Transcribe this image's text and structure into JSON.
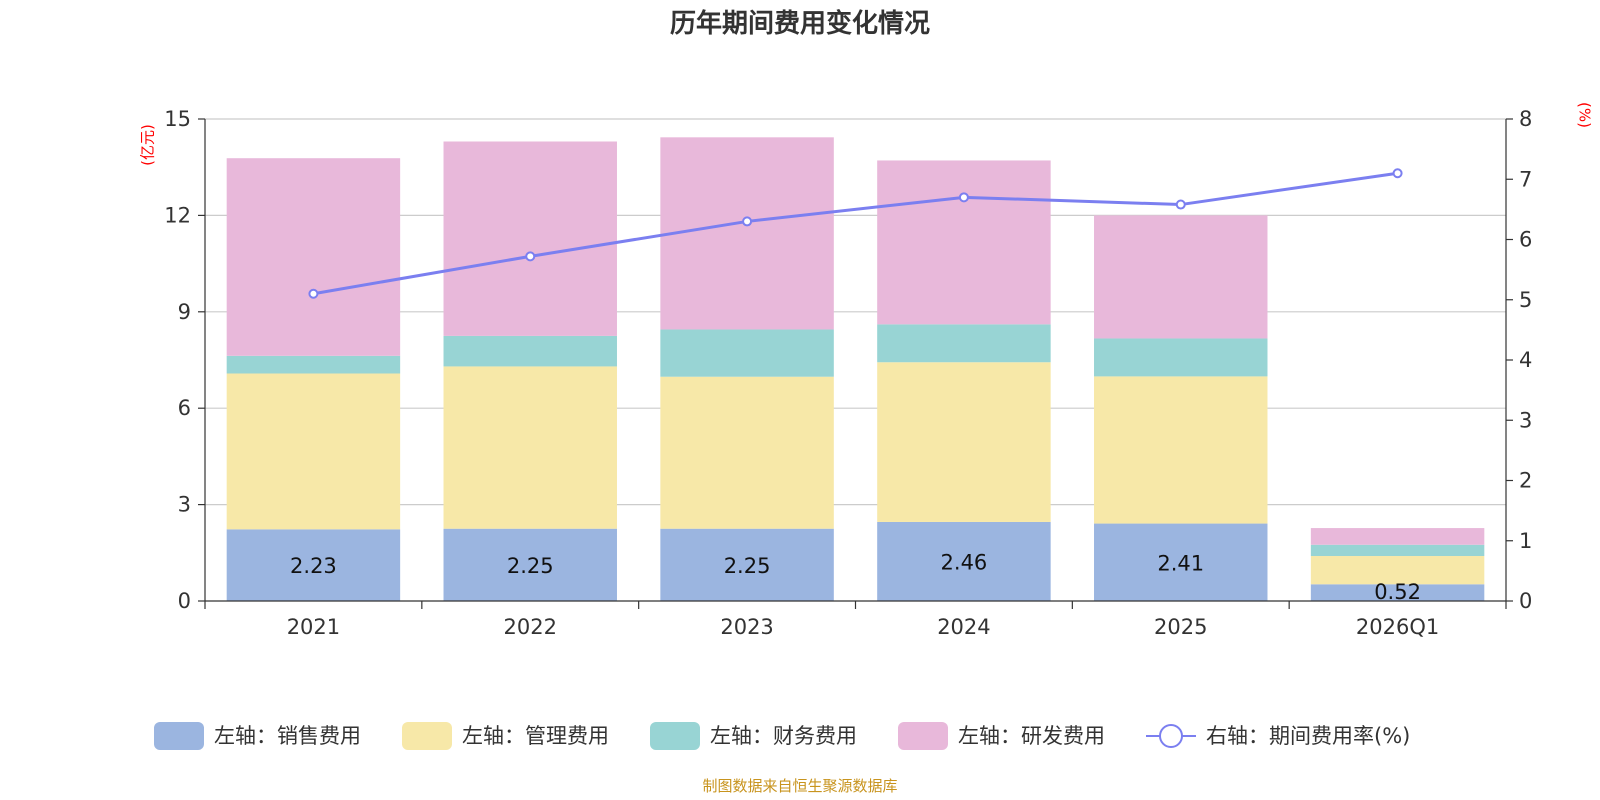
{
  "chart_data": {
    "type": "bar",
    "stacked": true,
    "title": "历年期间费用变化情况",
    "categories": [
      "2021",
      "2022",
      "2023",
      "2024",
      "2025",
      "2026Q1"
    ],
    "y_left": {
      "unit": "(亿元)",
      "min": 0,
      "max": 15,
      "ticks": [
        0,
        3,
        6,
        9,
        12,
        15
      ]
    },
    "y_right": {
      "unit": "(%)",
      "min": 0,
      "max": 8,
      "ticks": [
        0,
        1,
        2,
        3,
        4,
        5,
        6,
        7,
        8
      ]
    },
    "series": [
      {
        "name": "左轴：销售费用",
        "axis": "left",
        "color": "#9bb5e0",
        "values": [
          2.23,
          2.25,
          2.25,
          2.46,
          2.41,
          0.52
        ],
        "labels": [
          "2.23",
          "2.25",
          "2.25",
          "2.46",
          "2.41",
          "0.52"
        ]
      },
      {
        "name": "左轴：管理费用",
        "axis": "left",
        "color": "#f7e8a8",
        "values": [
          4.85,
          5.05,
          4.73,
          4.97,
          4.58,
          0.88
        ]
      },
      {
        "name": "左轴：财务费用",
        "axis": "left",
        "color": "#98d4d4",
        "values": [
          0.55,
          0.95,
          1.47,
          1.18,
          1.18,
          0.35
        ]
      },
      {
        "name": "左轴：研发费用",
        "axis": "left",
        "color": "#e8b8da",
        "values": [
          6.15,
          6.05,
          5.98,
          5.1,
          3.83,
          0.52
        ]
      },
      {
        "name": "右轴：期间费用率(%)",
        "axis": "right",
        "type": "line",
        "color": "#7b7ff0",
        "values": [
          5.1,
          5.72,
          6.3,
          6.7,
          6.58,
          7.1
        ]
      }
    ],
    "source": "制图数据来自恒生聚源数据库"
  }
}
